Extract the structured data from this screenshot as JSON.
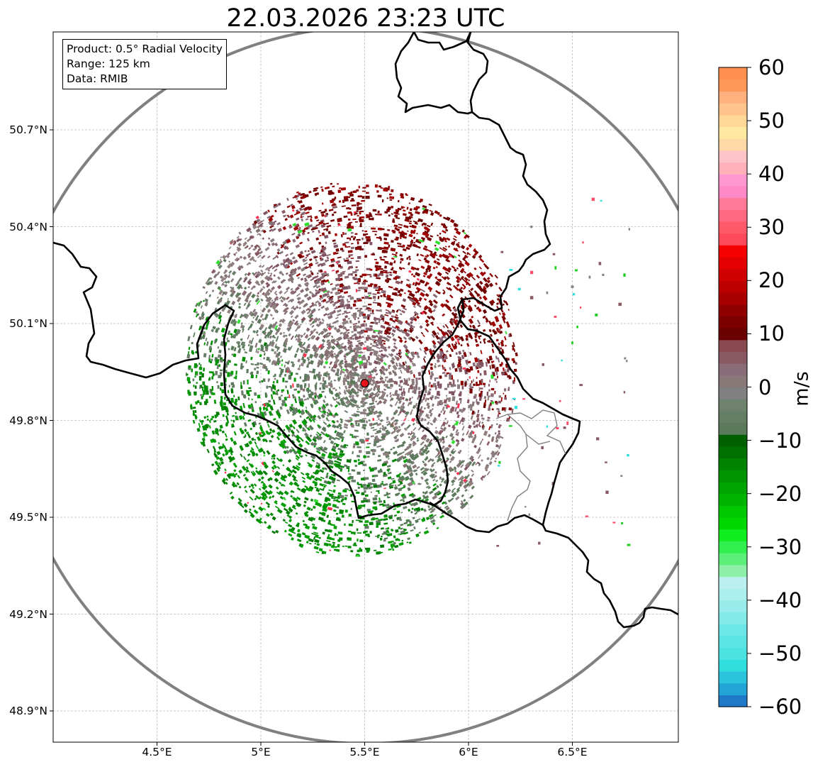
{
  "title": "22.03.2026 23:23 UTC",
  "info_box": {
    "product": "Product: 0.5° Radial Velocity",
    "range": "Range: 125 km",
    "data": "Data: RMIB"
  },
  "axes": {
    "lon_ticks": [
      "4.5°E",
      "5°E",
      "5.5°E",
      "6°E",
      "6.5°E"
    ],
    "lat_ticks": [
      "50.7°N",
      "50.4°N",
      "50.1°N",
      "49.8°N",
      "49.5°N",
      "49.2°N",
      "48.9°N"
    ]
  },
  "colorbar": {
    "label": "m/s",
    "ticks": [
      "60",
      "50",
      "40",
      "30",
      "20",
      "10",
      "0",
      "−10",
      "−20",
      "−30",
      "−40",
      "−50",
      "−60"
    ],
    "colors": [
      "#1f78c8",
      "#22a4d6",
      "#2cc4dc",
      "#30dede",
      "#4ce2e2",
      "#5ae4e4",
      "#6ce6e6",
      "#84eaea",
      "#98ecec",
      "#acefef",
      "#bcf0f0",
      "#8ef0a8",
      "#5cf07a",
      "#30f050",
      "#10ee20",
      "#00d800",
      "#00c800",
      "#00b400",
      "#00a400",
      "#009400",
      "#008400",
      "#007000",
      "#006000",
      "#5a7a5a",
      "#647e64",
      "#6e826e",
      "#808080",
      "#887878",
      "#8a6c78",
      "#8a5a64",
      "#884a50",
      "#6a0000",
      "#7c0000",
      "#900000",
      "#a80000",
      "#bc0000",
      "#d00000",
      "#e40000",
      "#f40000",
      "#ff4a5a",
      "#ff5a6a",
      "#ff6a80",
      "#ff7a98",
      "#ff88c8",
      "#ff98d0",
      "#ffb0b8",
      "#ffc4c8",
      "#ffd8a8",
      "#ffe8a0",
      "#ffd898",
      "#ffc48c",
      "#ffb07c",
      "#ff9858",
      "#ff9050"
    ]
  },
  "radar_site": {
    "lon": 5.5,
    "lat": 49.915
  },
  "colors": {
    "negative_strong": "#008c00",
    "negative_weak": "#5a7a5a",
    "neutral": "#8a7c7c",
    "positive_weak": "#8a5a64",
    "positive_strong": "#780000",
    "border": "#000000",
    "range_ring": "#808080"
  }
}
